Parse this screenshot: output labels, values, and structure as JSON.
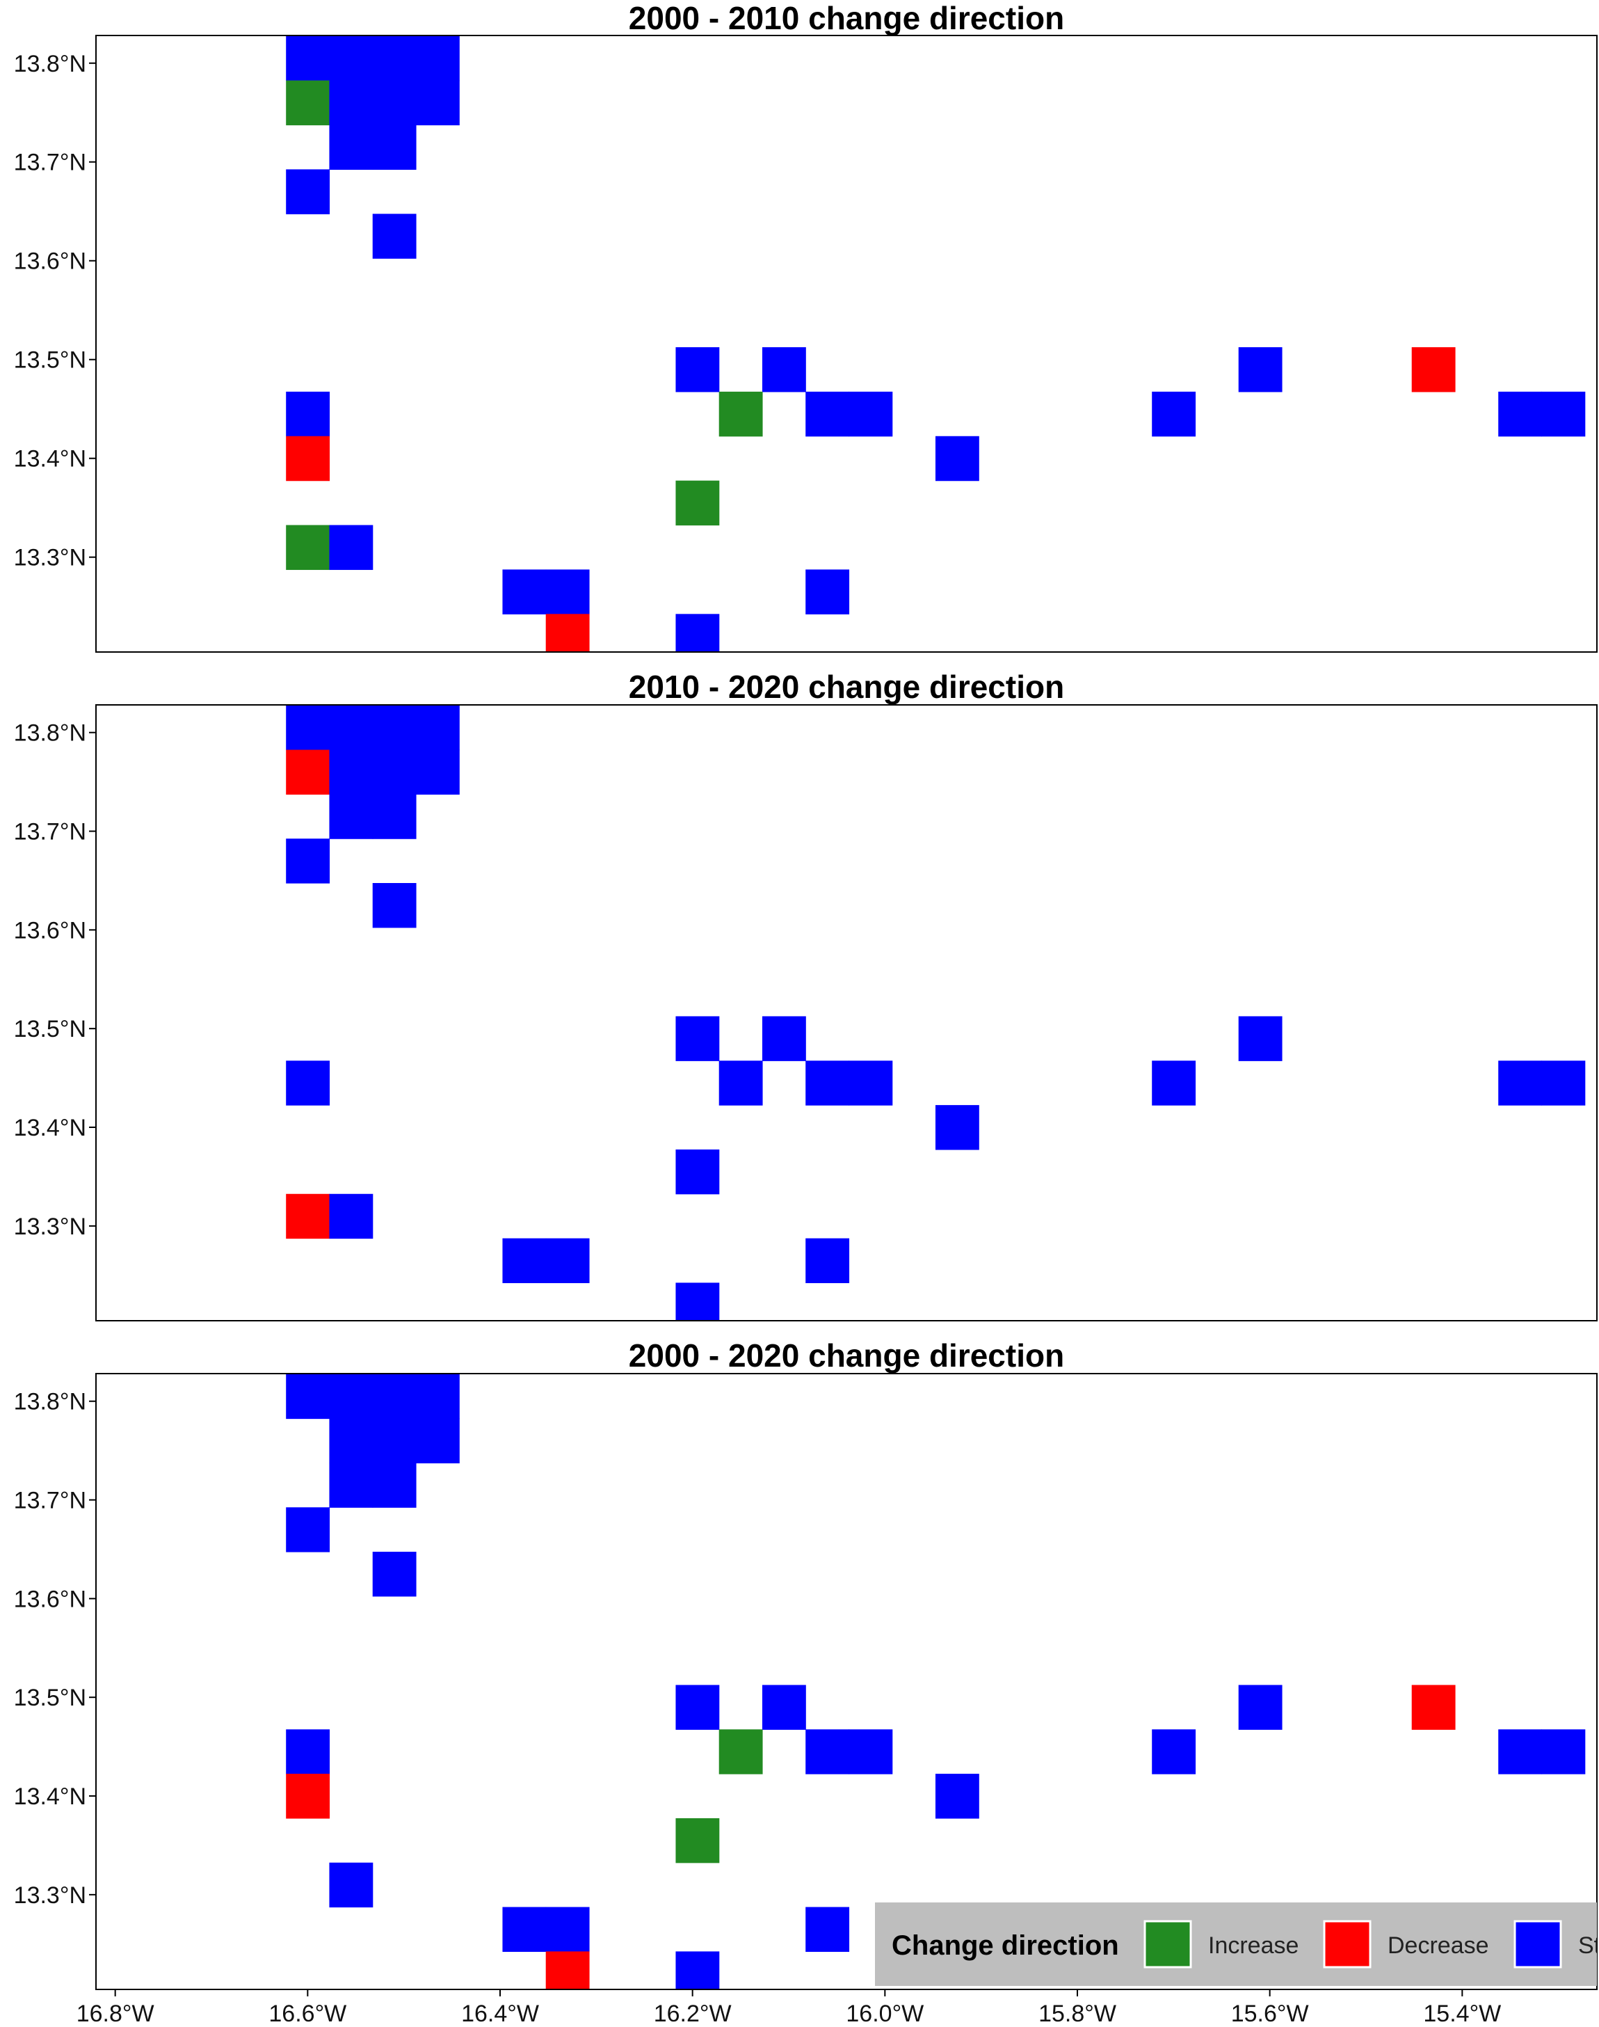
{
  "colors": {
    "Increase": "#228b22",
    "Decrease": "#ff0000",
    "Stable": "#0000ff",
    "legend_bg": "#bebebe",
    "frame": "#000000"
  },
  "chart_data": [
    {
      "type": "heatmap",
      "title": "2000 - 2010 change direction",
      "xlim": [
        -16.82,
        -15.26
      ],
      "ylim": [
        13.204,
        13.828
      ],
      "cell_deg": 0.045,
      "yticks": [
        13.3,
        13.4,
        13.5,
        13.6,
        13.7,
        13.8
      ],
      "ytick_labels": [
        "13.3°N",
        "13.4°N",
        "13.5°N",
        "13.6°N",
        "13.7°N",
        "13.8°N"
      ],
      "cells": [
        {
          "lon": -16.6,
          "lat": 13.805,
          "dir": "Stable"
        },
        {
          "lon": -16.555,
          "lat": 13.805,
          "dir": "Stable"
        },
        {
          "lon": -16.51,
          "lat": 13.805,
          "dir": "Stable"
        },
        {
          "lon": -16.465,
          "lat": 13.805,
          "dir": "Stable"
        },
        {
          "lon": -16.6,
          "lat": 13.76,
          "dir": "Increase"
        },
        {
          "lon": -16.555,
          "lat": 13.76,
          "dir": "Stable"
        },
        {
          "lon": -16.51,
          "lat": 13.76,
          "dir": "Stable"
        },
        {
          "lon": -16.465,
          "lat": 13.76,
          "dir": "Stable"
        },
        {
          "lon": -16.555,
          "lat": 13.715,
          "dir": "Stable"
        },
        {
          "lon": -16.51,
          "lat": 13.715,
          "dir": "Stable"
        },
        {
          "lon": -16.6,
          "lat": 13.67,
          "dir": "Stable"
        },
        {
          "lon": -16.51,
          "lat": 13.625,
          "dir": "Stable"
        },
        {
          "lon": -16.195,
          "lat": 13.49,
          "dir": "Stable"
        },
        {
          "lon": -16.105,
          "lat": 13.49,
          "dir": "Stable"
        },
        {
          "lon": -15.61,
          "lat": 13.49,
          "dir": "Stable"
        },
        {
          "lon": -15.43,
          "lat": 13.49,
          "dir": "Decrease"
        },
        {
          "lon": -16.6,
          "lat": 13.445,
          "dir": "Stable"
        },
        {
          "lon": -16.15,
          "lat": 13.445,
          "dir": "Increase"
        },
        {
          "lon": -16.06,
          "lat": 13.445,
          "dir": "Stable"
        },
        {
          "lon": -16.015,
          "lat": 13.445,
          "dir": "Stable"
        },
        {
          "lon": -15.7,
          "lat": 13.445,
          "dir": "Stable"
        },
        {
          "lon": -15.34,
          "lat": 13.445,
          "dir": "Stable"
        },
        {
          "lon": -15.295,
          "lat": 13.445,
          "dir": "Stable"
        },
        {
          "lon": -16.6,
          "lat": 13.4,
          "dir": "Decrease"
        },
        {
          "lon": -15.925,
          "lat": 13.4,
          "dir": "Stable"
        },
        {
          "lon": -16.195,
          "lat": 13.355,
          "dir": "Increase"
        },
        {
          "lon": -16.6,
          "lat": 13.31,
          "dir": "Increase"
        },
        {
          "lon": -16.555,
          "lat": 13.31,
          "dir": "Stable"
        },
        {
          "lon": -16.375,
          "lat": 13.265,
          "dir": "Stable"
        },
        {
          "lon": -16.33,
          "lat": 13.265,
          "dir": "Stable"
        },
        {
          "lon": -16.06,
          "lat": 13.265,
          "dir": "Stable"
        },
        {
          "lon": -16.33,
          "lat": 13.22,
          "dir": "Decrease"
        },
        {
          "lon": -16.195,
          "lat": 13.22,
          "dir": "Stable"
        }
      ]
    },
    {
      "type": "heatmap",
      "title": "2010 - 2020 change direction",
      "xlim": [
        -16.82,
        -15.26
      ],
      "ylim": [
        13.204,
        13.828
      ],
      "cell_deg": 0.045,
      "yticks": [
        13.3,
        13.4,
        13.5,
        13.6,
        13.7,
        13.8
      ],
      "ytick_labels": [
        "13.3°N",
        "13.4°N",
        "13.5°N",
        "13.6°N",
        "13.7°N",
        "13.8°N"
      ],
      "cells": [
        {
          "lon": -16.6,
          "lat": 13.805,
          "dir": "Stable"
        },
        {
          "lon": -16.555,
          "lat": 13.805,
          "dir": "Stable"
        },
        {
          "lon": -16.51,
          "lat": 13.805,
          "dir": "Stable"
        },
        {
          "lon": -16.465,
          "lat": 13.805,
          "dir": "Stable"
        },
        {
          "lon": -16.6,
          "lat": 13.76,
          "dir": "Decrease"
        },
        {
          "lon": -16.555,
          "lat": 13.76,
          "dir": "Stable"
        },
        {
          "lon": -16.51,
          "lat": 13.76,
          "dir": "Stable"
        },
        {
          "lon": -16.465,
          "lat": 13.76,
          "dir": "Stable"
        },
        {
          "lon": -16.555,
          "lat": 13.715,
          "dir": "Stable"
        },
        {
          "lon": -16.51,
          "lat": 13.715,
          "dir": "Stable"
        },
        {
          "lon": -16.6,
          "lat": 13.67,
          "dir": "Stable"
        },
        {
          "lon": -16.51,
          "lat": 13.625,
          "dir": "Stable"
        },
        {
          "lon": -16.195,
          "lat": 13.49,
          "dir": "Stable"
        },
        {
          "lon": -16.105,
          "lat": 13.49,
          "dir": "Stable"
        },
        {
          "lon": -15.61,
          "lat": 13.49,
          "dir": "Stable"
        },
        {
          "lon": -16.6,
          "lat": 13.445,
          "dir": "Stable"
        },
        {
          "lon": -16.15,
          "lat": 13.445,
          "dir": "Stable"
        },
        {
          "lon": -16.06,
          "lat": 13.445,
          "dir": "Stable"
        },
        {
          "lon": -16.015,
          "lat": 13.445,
          "dir": "Stable"
        },
        {
          "lon": -15.7,
          "lat": 13.445,
          "dir": "Stable"
        },
        {
          "lon": -15.34,
          "lat": 13.445,
          "dir": "Stable"
        },
        {
          "lon": -15.295,
          "lat": 13.445,
          "dir": "Stable"
        },
        {
          "lon": -15.925,
          "lat": 13.4,
          "dir": "Stable"
        },
        {
          "lon": -16.195,
          "lat": 13.355,
          "dir": "Stable"
        },
        {
          "lon": -16.6,
          "lat": 13.31,
          "dir": "Decrease"
        },
        {
          "lon": -16.555,
          "lat": 13.31,
          "dir": "Stable"
        },
        {
          "lon": -16.375,
          "lat": 13.265,
          "dir": "Stable"
        },
        {
          "lon": -16.33,
          "lat": 13.265,
          "dir": "Stable"
        },
        {
          "lon": -16.06,
          "lat": 13.265,
          "dir": "Stable"
        },
        {
          "lon": -16.195,
          "lat": 13.22,
          "dir": "Stable"
        }
      ]
    },
    {
      "type": "heatmap",
      "title": "2000 - 2020 change direction",
      "xlim": [
        -16.82,
        -15.26
      ],
      "ylim": [
        13.204,
        13.828
      ],
      "cell_deg": 0.045,
      "yticks": [
        13.3,
        13.4,
        13.5,
        13.6,
        13.7,
        13.8
      ],
      "ytick_labels": [
        "13.3°N",
        "13.4°N",
        "13.5°N",
        "13.6°N",
        "13.7°N",
        "13.8°N"
      ],
      "xticks": [
        -16.8,
        -16.6,
        -16.4,
        -16.2,
        -16.0,
        -15.8,
        -15.6,
        -15.4
      ],
      "xtick_labels": [
        "16.8°W",
        "16.6°W",
        "16.4°W",
        "16.2°W",
        "16.0°W",
        "15.8°W",
        "15.6°W",
        "15.4°W"
      ],
      "cells": [
        {
          "lon": -16.6,
          "lat": 13.805,
          "dir": "Stable"
        },
        {
          "lon": -16.555,
          "lat": 13.805,
          "dir": "Stable"
        },
        {
          "lon": -16.51,
          "lat": 13.805,
          "dir": "Stable"
        },
        {
          "lon": -16.465,
          "lat": 13.805,
          "dir": "Stable"
        },
        {
          "lon": -16.555,
          "lat": 13.76,
          "dir": "Stable"
        },
        {
          "lon": -16.51,
          "lat": 13.76,
          "dir": "Stable"
        },
        {
          "lon": -16.465,
          "lat": 13.76,
          "dir": "Stable"
        },
        {
          "lon": -16.555,
          "lat": 13.715,
          "dir": "Stable"
        },
        {
          "lon": -16.51,
          "lat": 13.715,
          "dir": "Stable"
        },
        {
          "lon": -16.6,
          "lat": 13.67,
          "dir": "Stable"
        },
        {
          "lon": -16.51,
          "lat": 13.625,
          "dir": "Stable"
        },
        {
          "lon": -16.195,
          "lat": 13.49,
          "dir": "Stable"
        },
        {
          "lon": -16.105,
          "lat": 13.49,
          "dir": "Stable"
        },
        {
          "lon": -15.61,
          "lat": 13.49,
          "dir": "Stable"
        },
        {
          "lon": -15.43,
          "lat": 13.49,
          "dir": "Decrease"
        },
        {
          "lon": -16.6,
          "lat": 13.445,
          "dir": "Stable"
        },
        {
          "lon": -16.15,
          "lat": 13.445,
          "dir": "Increase"
        },
        {
          "lon": -16.06,
          "lat": 13.445,
          "dir": "Stable"
        },
        {
          "lon": -16.015,
          "lat": 13.445,
          "dir": "Stable"
        },
        {
          "lon": -15.7,
          "lat": 13.445,
          "dir": "Stable"
        },
        {
          "lon": -15.34,
          "lat": 13.445,
          "dir": "Stable"
        },
        {
          "lon": -15.295,
          "lat": 13.445,
          "dir": "Stable"
        },
        {
          "lon": -16.6,
          "lat": 13.4,
          "dir": "Decrease"
        },
        {
          "lon": -15.925,
          "lat": 13.4,
          "dir": "Stable"
        },
        {
          "lon": -16.195,
          "lat": 13.355,
          "dir": "Increase"
        },
        {
          "lon": -16.555,
          "lat": 13.31,
          "dir": "Stable"
        },
        {
          "lon": -16.375,
          "lat": 13.265,
          "dir": "Stable"
        },
        {
          "lon": -16.33,
          "lat": 13.265,
          "dir": "Stable"
        },
        {
          "lon": -16.06,
          "lat": 13.265,
          "dir": "Stable"
        },
        {
          "lon": -16.33,
          "lat": 13.22,
          "dir": "Decrease"
        },
        {
          "lon": -16.195,
          "lat": 13.22,
          "dir": "Stable"
        }
      ]
    }
  ],
  "legend": {
    "title": "Change direction",
    "placement": "bottom-right",
    "items": [
      {
        "key": "Increase",
        "label": "Increase"
      },
      {
        "key": "Decrease",
        "label": "Decrease"
      },
      {
        "key": "Stable",
        "label": "St"
      }
    ]
  }
}
